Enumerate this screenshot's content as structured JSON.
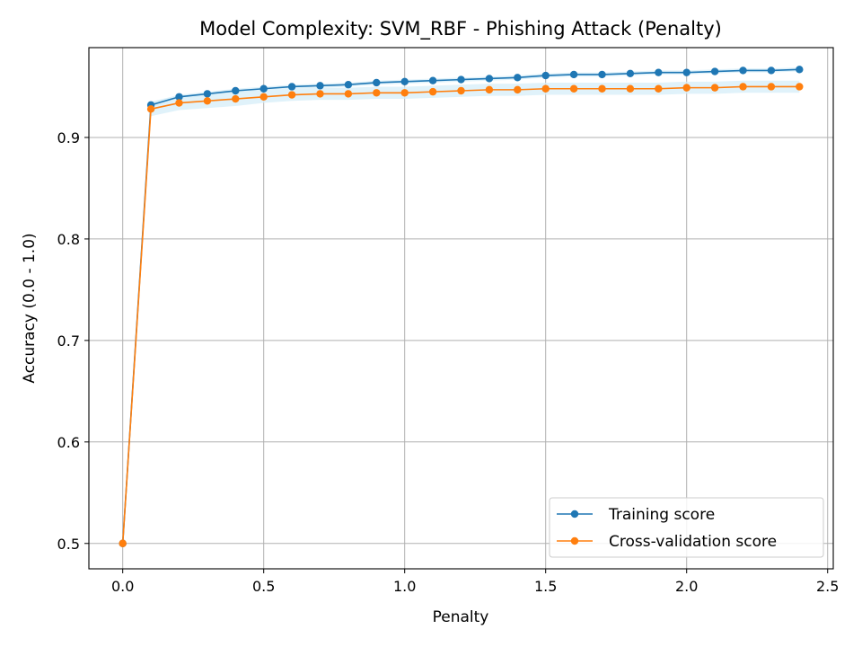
{
  "chart_data": {
    "type": "line",
    "title": "Model Complexity: SVM_RBF - Phishing Attack (Penalty)",
    "xlabel": "Penalty",
    "ylabel": "Accuracy (0.0 - 1.0)",
    "xlim": [
      -0.12,
      2.52
    ],
    "ylim": [
      0.475,
      0.9885
    ],
    "xticks": [
      0.0,
      0.5,
      1.0,
      1.5,
      2.0,
      2.5
    ],
    "xtick_labels": [
      "0.0",
      "0.5",
      "1.0",
      "1.5",
      "2.0",
      "2.5"
    ],
    "yticks": [
      0.5,
      0.6,
      0.7,
      0.8,
      0.9
    ],
    "ytick_labels": [
      "0.5",
      "0.6",
      "0.7",
      "0.8",
      "0.9"
    ],
    "grid": true,
    "legend_position": "bottom-right",
    "x": [
      0.0,
      0.1,
      0.2,
      0.3,
      0.4,
      0.5,
      0.6,
      0.7,
      0.8,
      0.9,
      1.0,
      1.1,
      1.2,
      1.3,
      1.4,
      1.5,
      1.6,
      1.7,
      1.8,
      1.9,
      2.0,
      2.1,
      2.2,
      2.3,
      2.4
    ],
    "series": [
      {
        "name": "Training score",
        "color": "#1f77b4",
        "band_color": "#d6eef8",
        "values": [
          0.5,
          0.932,
          0.94,
          0.943,
          0.946,
          0.948,
          0.95,
          0.951,
          0.952,
          0.954,
          0.955,
          0.956,
          0.957,
          0.958,
          0.959,
          0.961,
          0.962,
          0.962,
          0.963,
          0.964,
          0.964,
          0.965,
          0.966,
          0.966,
          0.967
        ],
        "band": [
          0.002,
          0.003,
          0.002,
          0.002,
          0.002,
          0.002,
          0.002,
          0.002,
          0.002,
          0.002,
          0.002,
          0.002,
          0.002,
          0.002,
          0.002,
          0.002,
          0.002,
          0.002,
          0.002,
          0.002,
          0.002,
          0.002,
          0.002,
          0.002,
          0.002
        ]
      },
      {
        "name": "Cross-validation score",
        "color": "#ff7f0e",
        "band_color": "#d6eef8",
        "values": [
          0.5,
          0.928,
          0.934,
          0.936,
          0.938,
          0.94,
          0.942,
          0.943,
          0.943,
          0.944,
          0.944,
          0.945,
          0.946,
          0.947,
          0.947,
          0.948,
          0.948,
          0.948,
          0.948,
          0.948,
          0.949,
          0.949,
          0.95,
          0.95,
          0.95
        ],
        "band": [
          0.002,
          0.007,
          0.007,
          0.007,
          0.007,
          0.006,
          0.006,
          0.006,
          0.006,
          0.006,
          0.006,
          0.006,
          0.006,
          0.006,
          0.006,
          0.006,
          0.006,
          0.006,
          0.006,
          0.006,
          0.006,
          0.006,
          0.006,
          0.006,
          0.006
        ]
      }
    ]
  },
  "colors": {
    "grid": "#b0b0b0",
    "axes": "#000000",
    "legend_border": "#cccccc"
  }
}
